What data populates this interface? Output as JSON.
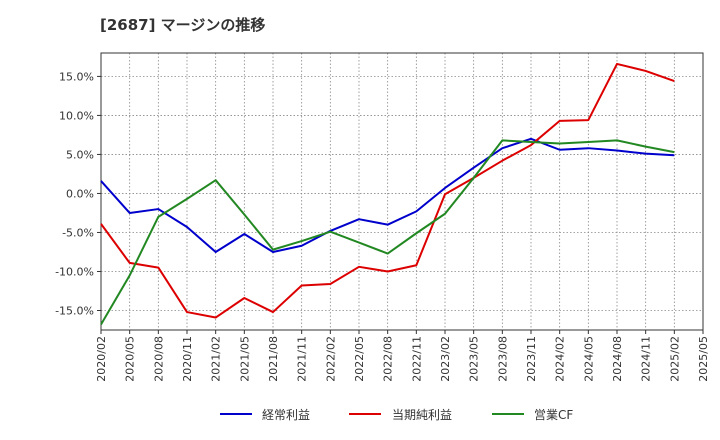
{
  "title": "[2687]  マージンの推移",
  "chart_data": {
    "type": "line",
    "x": [
      "2020/02",
      "2020/05",
      "2020/08",
      "2020/11",
      "2021/02",
      "2021/05",
      "2021/08",
      "2021/11",
      "2022/02",
      "2022/05",
      "2022/08",
      "2022/11",
      "2023/02",
      "2023/05",
      "2023/08",
      "2023/11",
      "2024/02",
      "2024/05",
      "2024/08",
      "2024/11",
      "2025/02",
      "2025/05"
    ],
    "ylim": [
      -17.5,
      18
    ],
    "y_ticks": [
      15,
      10,
      5,
      0,
      -5,
      -10,
      -15
    ],
    "y_tick_labels": [
      "15.0%",
      "10.0%",
      "5.0%",
      "0.0%",
      "-5.0%",
      "-10.0%",
      "-15.0%"
    ],
    "grid": true,
    "legend_position": "bottom",
    "series": [
      {
        "name": "経常利益",
        "color": "#0000cc",
        "values": [
          1.6,
          -2.5,
          -2.0,
          -4.3,
          -7.5,
          -5.2,
          -7.5,
          -6.7,
          -4.8,
          -3.3,
          -4.0,
          -2.3,
          0.7,
          3.3,
          5.8,
          7.0,
          5.6,
          5.8,
          5.5,
          5.1,
          4.9,
          null
        ]
      },
      {
        "name": "当期純利益",
        "color": "#dd0000",
        "values": [
          -3.9,
          -8.9,
          -9.5,
          -15.2,
          -15.9,
          -13.4,
          -15.2,
          -11.8,
          -11.6,
          -9.4,
          -10.0,
          -9.2,
          -0.1,
          2.0,
          4.2,
          6.2,
          9.3,
          9.4,
          16.6,
          15.7,
          14.4,
          null
        ]
      },
      {
        "name": "営業CF",
        "color": "#228822",
        "values": [
          -16.8,
          -10.5,
          -3.0,
          -0.7,
          1.7,
          -2.7,
          -7.2,
          -6.1,
          -4.9,
          -6.3,
          -7.7,
          -5.1,
          -2.6,
          2.0,
          6.8,
          6.6,
          6.4,
          6.6,
          6.8,
          6.0,
          5.3,
          null
        ]
      }
    ]
  }
}
